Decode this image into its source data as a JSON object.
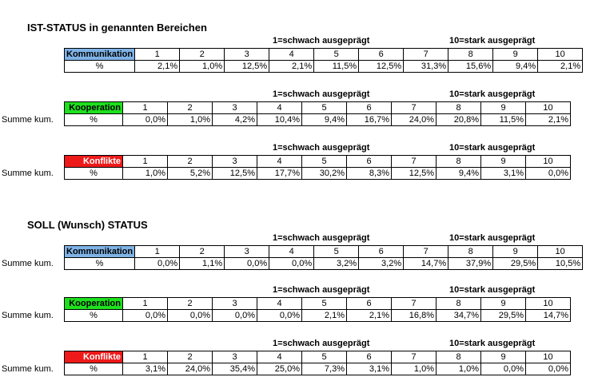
{
  "ist": {
    "title": "IST-STATUS in genannten Bereichen",
    "blocks": [
      {
        "label": "Kommunikation",
        "color": "#7fb3e6",
        "row_label": "",
        "unit": "%",
        "scale_low": "1=schwach ausgeprägt",
        "scale_high": "10=stark ausgeprägt",
        "cols": [
          "1",
          "2",
          "3",
          "4",
          "5",
          "6",
          "7",
          "8",
          "9",
          "10"
        ],
        "values": [
          "2,1%",
          "1,0%",
          "12,5%",
          "2,1%",
          "11,5%",
          "12,5%",
          "31,3%",
          "15,6%",
          "9,4%",
          "2,1%"
        ]
      },
      {
        "label": "Kooperation",
        "color": "#1ee01e",
        "row_label": "Summe kum.",
        "unit": "%",
        "scale_low": "1=schwach ausgeprägt",
        "scale_high": "10=stark ausgeprägt",
        "cols": [
          "1",
          "2",
          "3",
          "4",
          "5",
          "6",
          "7",
          "8",
          "9",
          "10"
        ],
        "values": [
          "0,0%",
          "1,0%",
          "4,2%",
          "10,4%",
          "9,4%",
          "16,7%",
          "24,0%",
          "20,8%",
          "11,5%",
          "2,1%"
        ]
      },
      {
        "label": "Konflikte",
        "color": "#ee1a1a",
        "row_label": "Summe kum.",
        "unit": "%",
        "scale_low": "1=schwach ausgeprägt",
        "scale_high": "10=stark ausgeprägt",
        "cols": [
          "1",
          "2",
          "3",
          "4",
          "5",
          "6",
          "7",
          "8",
          "9",
          "10"
        ],
        "values": [
          "1,0%",
          "5,2%",
          "12,5%",
          "17,7%",
          "30,2%",
          "8,3%",
          "12,5%",
          "9,4%",
          "3,1%",
          "0,0%"
        ]
      }
    ]
  },
  "soll": {
    "title": "SOLL (Wunsch) STATUS",
    "blocks": [
      {
        "label": "Kommunikation",
        "color": "#7fb3e6",
        "row_label": "Summe kum.",
        "unit": "%",
        "scale_low": "1=schwach ausgeprägt",
        "scale_high": "10=stark ausgeprägt",
        "cols": [
          "1",
          "2",
          "3",
          "4",
          "5",
          "6",
          "7",
          "8",
          "9",
          "10"
        ],
        "values": [
          "0,0%",
          "1,1%",
          "0,0%",
          "0,0%",
          "3,2%",
          "3,2%",
          "14,7%",
          "37,9%",
          "29,5%",
          "10,5%"
        ]
      },
      {
        "label": "Kooperation",
        "color": "#1ee01e",
        "row_label": "Summe kum.",
        "unit": "%",
        "scale_low": "1=schwach ausgeprägt",
        "scale_high": "10=stark ausgeprägt",
        "cols": [
          "1",
          "2",
          "3",
          "4",
          "5",
          "6",
          "7",
          "8",
          "9",
          "10"
        ],
        "values": [
          "0,0%",
          "0,0%",
          "0,0%",
          "0,0%",
          "2,1%",
          "2,1%",
          "16,8%",
          "34,7%",
          "29,5%",
          "14,7%"
        ]
      },
      {
        "label": "Konflikte",
        "color": "#ee1a1a",
        "row_label": "Summe kum.",
        "unit": "%",
        "scale_low": "1=schwach ausgeprägt",
        "scale_high": "10=stark ausgeprägt",
        "cols": [
          "1",
          "2",
          "3",
          "4",
          "5",
          "6",
          "7",
          "8",
          "9",
          "10"
        ],
        "values": [
          "3,1%",
          "24,0%",
          "35,4%",
          "25,0%",
          "7,3%",
          "3,1%",
          "1,0%",
          "1,0%",
          "0,0%",
          "0,0%"
        ]
      }
    ]
  }
}
